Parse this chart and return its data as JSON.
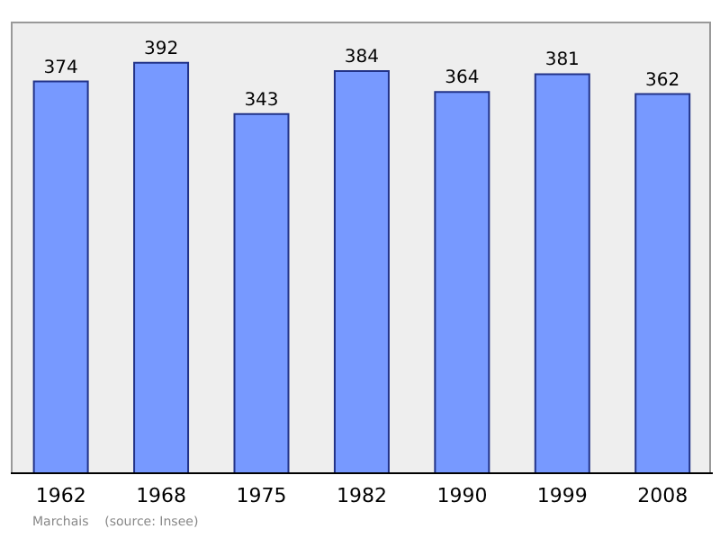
{
  "chart_data": {
    "type": "bar",
    "categories": [
      "1962",
      "1968",
      "1975",
      "1982",
      "1990",
      "1999",
      "2008"
    ],
    "values": [
      374,
      392,
      343,
      384,
      364,
      381,
      362
    ],
    "color": "#7799ff",
    "data_labels": true,
    "annotations": [
      "Marchais    (source: Insee)"
    ]
  }
}
